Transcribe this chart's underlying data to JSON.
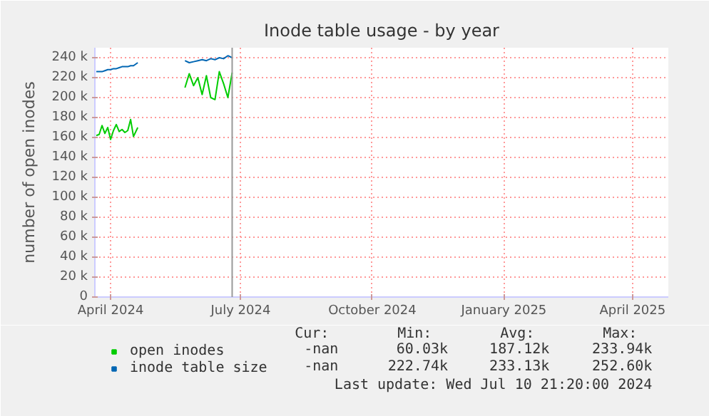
{
  "chart_data": {
    "type": "line",
    "title": "Inode table usage - by year",
    "ylabel": "number of open inodes",
    "x": [
      "2024-03-22",
      "2024-03-24",
      "2024-03-26",
      "2024-03-28",
      "2024-03-30",
      "2024-04-01",
      "2024-04-03",
      "2024-04-05",
      "2024-04-07",
      "2024-04-09",
      "2024-04-11",
      "2024-04-13",
      "2024-04-15",
      "2024-04-17",
      "2024-04-20",
      "2024-05-01",
      "2024-05-23",
      "2024-05-26",
      "2024-05-29",
      "2024-06-01",
      "2024-06-04",
      "2024-06-07",
      "2024-06-10",
      "2024-06-13",
      "2024-06-16",
      "2024-06-19",
      "2024-06-22",
      "2024-06-25"
    ],
    "series": [
      {
        "name": "open inodes",
        "color": "#00cc00",
        "values": [
          162000,
          163000,
          172000,
          164000,
          170000,
          158000,
          167000,
          173000,
          166000,
          168000,
          165000,
          167000,
          178000,
          161000,
          170000,
          null,
          210000,
          224000,
          212000,
          220000,
          203000,
          222000,
          200000,
          198000,
          226000,
          214000,
          200000,
          225000
        ]
      },
      {
        "name": "inode table size",
        "color": "#0066b3",
        "values": [
          226000,
          226000,
          226000,
          227000,
          228000,
          228000,
          229000,
          229000,
          230000,
          231000,
          231000,
          231000,
          232000,
          232000,
          235000,
          null,
          237000,
          235000,
          236000,
          237000,
          238000,
          237000,
          239000,
          238000,
          240000,
          239000,
          242000,
          240000
        ]
      }
    ],
    "xlim": [
      "2024-03-21",
      "2025-04-26"
    ],
    "xticks": [
      {
        "value": "2024-04-01",
        "label": "April 2024"
      },
      {
        "value": "2024-07-01",
        "label": "July 2024"
      },
      {
        "value": "2024-10-01",
        "label": "October 2024"
      },
      {
        "value": "2025-01-01",
        "label": "January 2025"
      },
      {
        "value": "2025-04-01",
        "label": "April 2025"
      }
    ],
    "ylim": [
      0,
      250000
    ],
    "yticks": [
      0,
      {
        "value": 20000,
        "label": "20 k"
      },
      {
        "value": 40000,
        "label": "40 k"
      },
      {
        "value": 60000,
        "label": "60 k"
      },
      {
        "value": 80000,
        "label": "80 k"
      },
      {
        "value": 100000,
        "label": "100 k"
      },
      {
        "value": 120000,
        "label": "120 k"
      },
      {
        "value": 140000,
        "label": "140 k"
      },
      {
        "value": 160000,
        "label": "160 k"
      },
      {
        "value": 180000,
        "label": "180 k"
      },
      {
        "value": 200000,
        "label": "200 k"
      },
      {
        "value": 220000,
        "label": "220 k"
      },
      {
        "value": 240000,
        "label": "240 k"
      }
    ],
    "ref_lines": [
      {
        "axis": "x",
        "value": "2024-06-25",
        "color": "#999999"
      }
    ],
    "grid": true,
    "legend": "bottom left",
    "marker": "none",
    "line_style": "solid",
    "annotations": [
      "Cur:",
      "Min:",
      "Avg:",
      "Max:",
      "-nan",
      "60.03k",
      "187.12k",
      "233.94k",
      "-nan",
      "222.74k",
      "233.13k",
      "252.60k",
      "Last update: Wed Jul 10 21:20:00 2024"
    ]
  }
}
